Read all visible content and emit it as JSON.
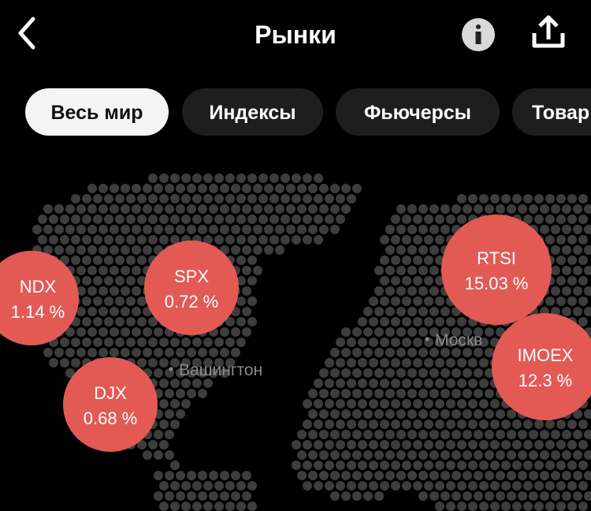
{
  "header": {
    "title": "Рынки"
  },
  "tabs": [
    "Весь мир",
    "Индексы",
    "Фьючерсы",
    "Товар"
  ],
  "map": {
    "cities": [
      "Вашингтон",
      "Москв"
    ],
    "markets": [
      {
        "name": "NDX",
        "change": "1.14 %"
      },
      {
        "name": "SPX",
        "change": "0.72 %"
      },
      {
        "name": "DJX",
        "change": "0.68 %"
      },
      {
        "name": "RTSI",
        "change": "15.03 %"
      },
      {
        "name": "IMOEX",
        "change": "12.3 %"
      }
    ]
  }
}
